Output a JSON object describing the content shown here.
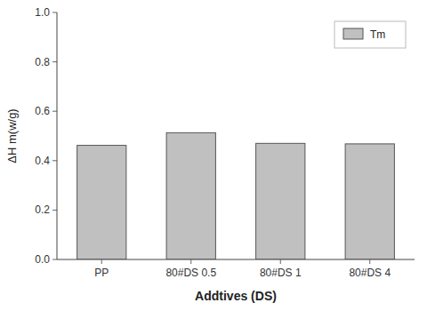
{
  "chart_data": {
    "type": "bar",
    "categories": [
      "PP",
      "80#DS 0.5",
      "80#DS 1",
      "80#DS 4"
    ],
    "series": [
      {
        "name": "Tm",
        "color": "#C0C0C0",
        "values": [
          0.462,
          0.513,
          0.47,
          0.468
        ]
      }
    ],
    "xlabel": "Addtives (DS)",
    "ylabel": "ΔH m(w/g)",
    "ylim": [
      0.0,
      1.0
    ],
    "yticks": [
      {
        "value": 0.0,
        "label": "0.0"
      },
      0.2,
      0.4,
      0.6,
      0.8,
      {
        "value": 1.0,
        "label": "1.0"
      }
    ],
    "legend": "upper right",
    "grid": false
  }
}
